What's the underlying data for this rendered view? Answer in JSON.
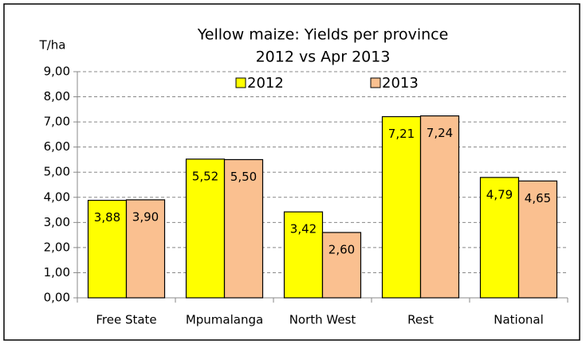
{
  "chart_data": {
    "type": "bar",
    "title": "Yellow maize: Yields per province",
    "subtitle": "2012 vs Apr 2013",
    "y_label": "T/ha",
    "categories": [
      "Free State",
      "Mpumalanga",
      "North West",
      "Rest",
      "National"
    ],
    "series": [
      {
        "name": "2012",
        "color": "#ffff00",
        "values": [
          3.88,
          5.52,
          3.42,
          7.21,
          4.79
        ],
        "value_labels": [
          "3,88",
          "5,52",
          "3,42",
          "7,21",
          "4,79"
        ]
      },
      {
        "name": "2013",
        "color": "#fac090",
        "values": [
          3.9,
          5.5,
          2.6,
          7.24,
          4.65
        ],
        "value_labels": [
          "3,90",
          "5,50",
          "2,60",
          "7,24",
          "4,65"
        ]
      }
    ],
    "ylim": [
      0,
      9
    ],
    "yticks": [
      {
        "value": 0,
        "label": "0,00"
      },
      {
        "value": 1,
        "label": "1,00"
      },
      {
        "value": 2,
        "label": "2,00"
      },
      {
        "value": 3,
        "label": "3,00"
      },
      {
        "value": 4,
        "label": "4,00"
      },
      {
        "value": 5,
        "label": "5,00"
      },
      {
        "value": 6,
        "label": "6,00"
      },
      {
        "value": 7,
        "label": "7,00"
      },
      {
        "value": 8,
        "label": "8,00"
      },
      {
        "value": 9,
        "label": "9,00"
      }
    ],
    "grid": true
  }
}
